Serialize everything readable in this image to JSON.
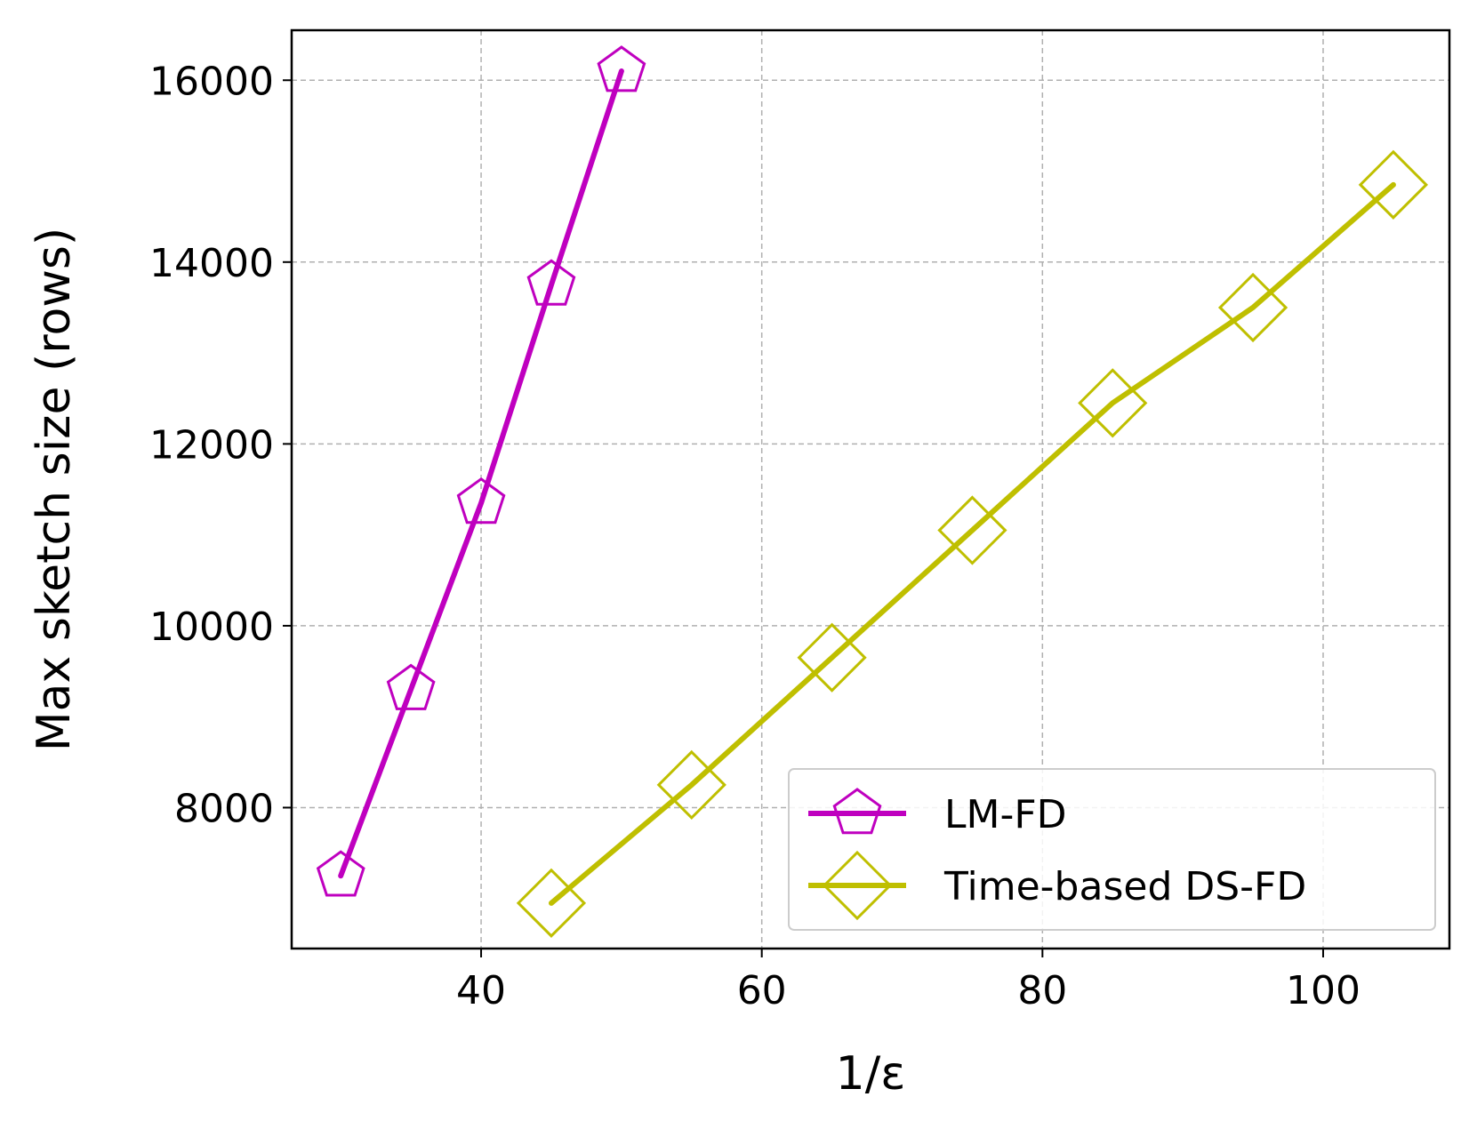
{
  "chart_data": {
    "type": "line",
    "xlabel": "1/ε",
    "ylabel": "Max sketch size (rows)",
    "xlim": [
      26.5,
      109
    ],
    "ylim": [
      6450,
      16550
    ],
    "x_ticks": [
      40,
      60,
      80,
      100
    ],
    "x_tick_labels": [
      "40",
      "60",
      "80",
      "100"
    ],
    "y_ticks": [
      8000,
      10000,
      12000,
      14000,
      16000
    ],
    "y_tick_labels": [
      "8000",
      "10000",
      "12000",
      "14000",
      "16000"
    ],
    "grid": true,
    "legend_position": "lower-right",
    "series": [
      {
        "name": "LM-FD",
        "color": "#bf00bf",
        "marker": "pentagon",
        "x": [
          30,
          35,
          40,
          45,
          50
        ],
        "y": [
          7250,
          9300,
          11350,
          13750,
          16100
        ]
      },
      {
        "name": "Time-based DS-FD",
        "color": "#bfbf00",
        "marker": "diamond",
        "x": [
          45,
          55,
          65,
          75,
          85,
          95,
          105
        ],
        "y": [
          6950,
          8250,
          9650,
          11050,
          12450,
          13500,
          14850
        ]
      }
    ]
  }
}
